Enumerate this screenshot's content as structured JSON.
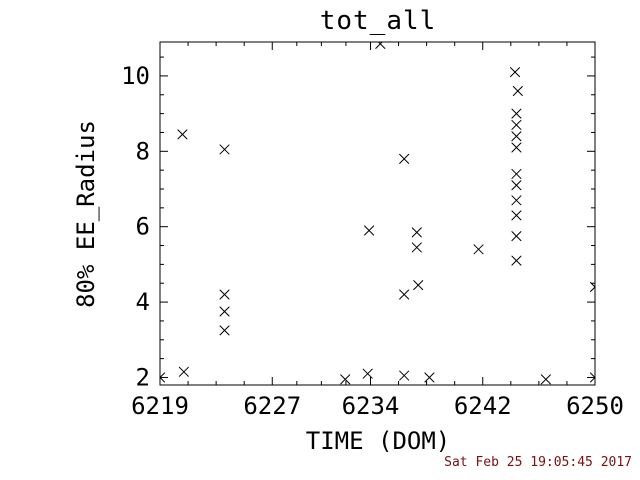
{
  "colors": {
    "axis": "#000000",
    "marker": "#000000",
    "timestamp": "#7a1010",
    "background": "#ffffff"
  },
  "footer": {
    "timestamp": "Sat Feb 25 19:05:45 2017"
  },
  "chart_data": {
    "type": "scatter",
    "title": "tot_all",
    "xlabel": "TIME (DOM)",
    "ylabel": "80% EE_Radius",
    "xlim": [
      6219,
      6250
    ],
    "ylim": [
      1.8,
      10.9
    ],
    "xticks": [
      6219,
      6227,
      6234,
      6242,
      6250
    ],
    "yticks": [
      2,
      4,
      6,
      8,
      10
    ],
    "grid": false,
    "legend": false,
    "marker": "x",
    "points": [
      [
        6219.0,
        2.0
      ],
      [
        6220.7,
        2.15
      ],
      [
        6220.6,
        8.45
      ],
      [
        6223.6,
        8.05
      ],
      [
        6223.6,
        4.2
      ],
      [
        6223.6,
        3.75
      ],
      [
        6223.6,
        3.25
      ],
      [
        6232.2,
        1.95
      ],
      [
        6233.8,
        2.1
      ],
      [
        6233.9,
        5.9
      ],
      [
        6234.7,
        10.85
      ],
      [
        6236.4,
        7.8
      ],
      [
        6236.4,
        4.2
      ],
      [
        6236.4,
        2.05
      ],
      [
        6237.3,
        5.85
      ],
      [
        6237.3,
        5.45
      ],
      [
        6237.4,
        4.45
      ],
      [
        6238.2,
        2.0
      ],
      [
        6241.7,
        5.4
      ],
      [
        6244.3,
        10.1
      ],
      [
        6244.5,
        9.6
      ],
      [
        6244.4,
        9.0
      ],
      [
        6244.4,
        8.7
      ],
      [
        6244.4,
        8.4
      ],
      [
        6244.4,
        8.1
      ],
      [
        6244.4,
        7.4
      ],
      [
        6244.4,
        7.1
      ],
      [
        6244.4,
        6.7
      ],
      [
        6244.4,
        6.3
      ],
      [
        6244.4,
        5.75
      ],
      [
        6244.4,
        5.1
      ],
      [
        6246.5,
        1.95
      ],
      [
        6250.0,
        4.4
      ],
      [
        6250.0,
        2.0
      ]
    ]
  }
}
